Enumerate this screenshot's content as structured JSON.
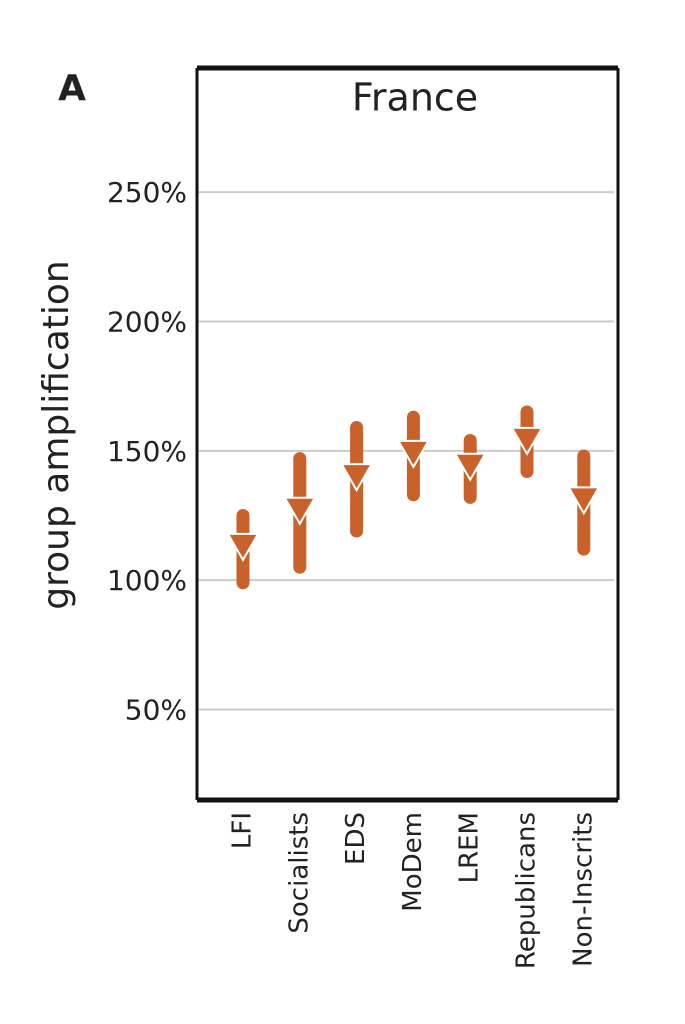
{
  "chart_data": {
    "type": "pointrange",
    "panel_label": "A",
    "title": "France",
    "y_label": "group amplification",
    "categories": [
      "LFI",
      "Socialists",
      "EDS",
      "MoDem",
      "LREM",
      "Republicans",
      "Non-Inscrits"
    ],
    "values": [
      114,
      128,
      141,
      150,
      145,
      155,
      132
    ],
    "lower": [
      99,
      105,
      119,
      133,
      132,
      142,
      112
    ],
    "upper": [
      125,
      147,
      159,
      163,
      154,
      165,
      148
    ],
    "color": "#c8622a",
    "ylim": [
      15,
      298
    ],
    "yticks": [
      {
        "value": 50,
        "label": "50%"
      },
      {
        "value": 100,
        "label": "100%"
      },
      {
        "value": 150,
        "label": "150%"
      },
      {
        "value": 200,
        "label": "200%"
      },
      {
        "value": 250,
        "label": "250%"
      }
    ],
    "grid": true
  }
}
